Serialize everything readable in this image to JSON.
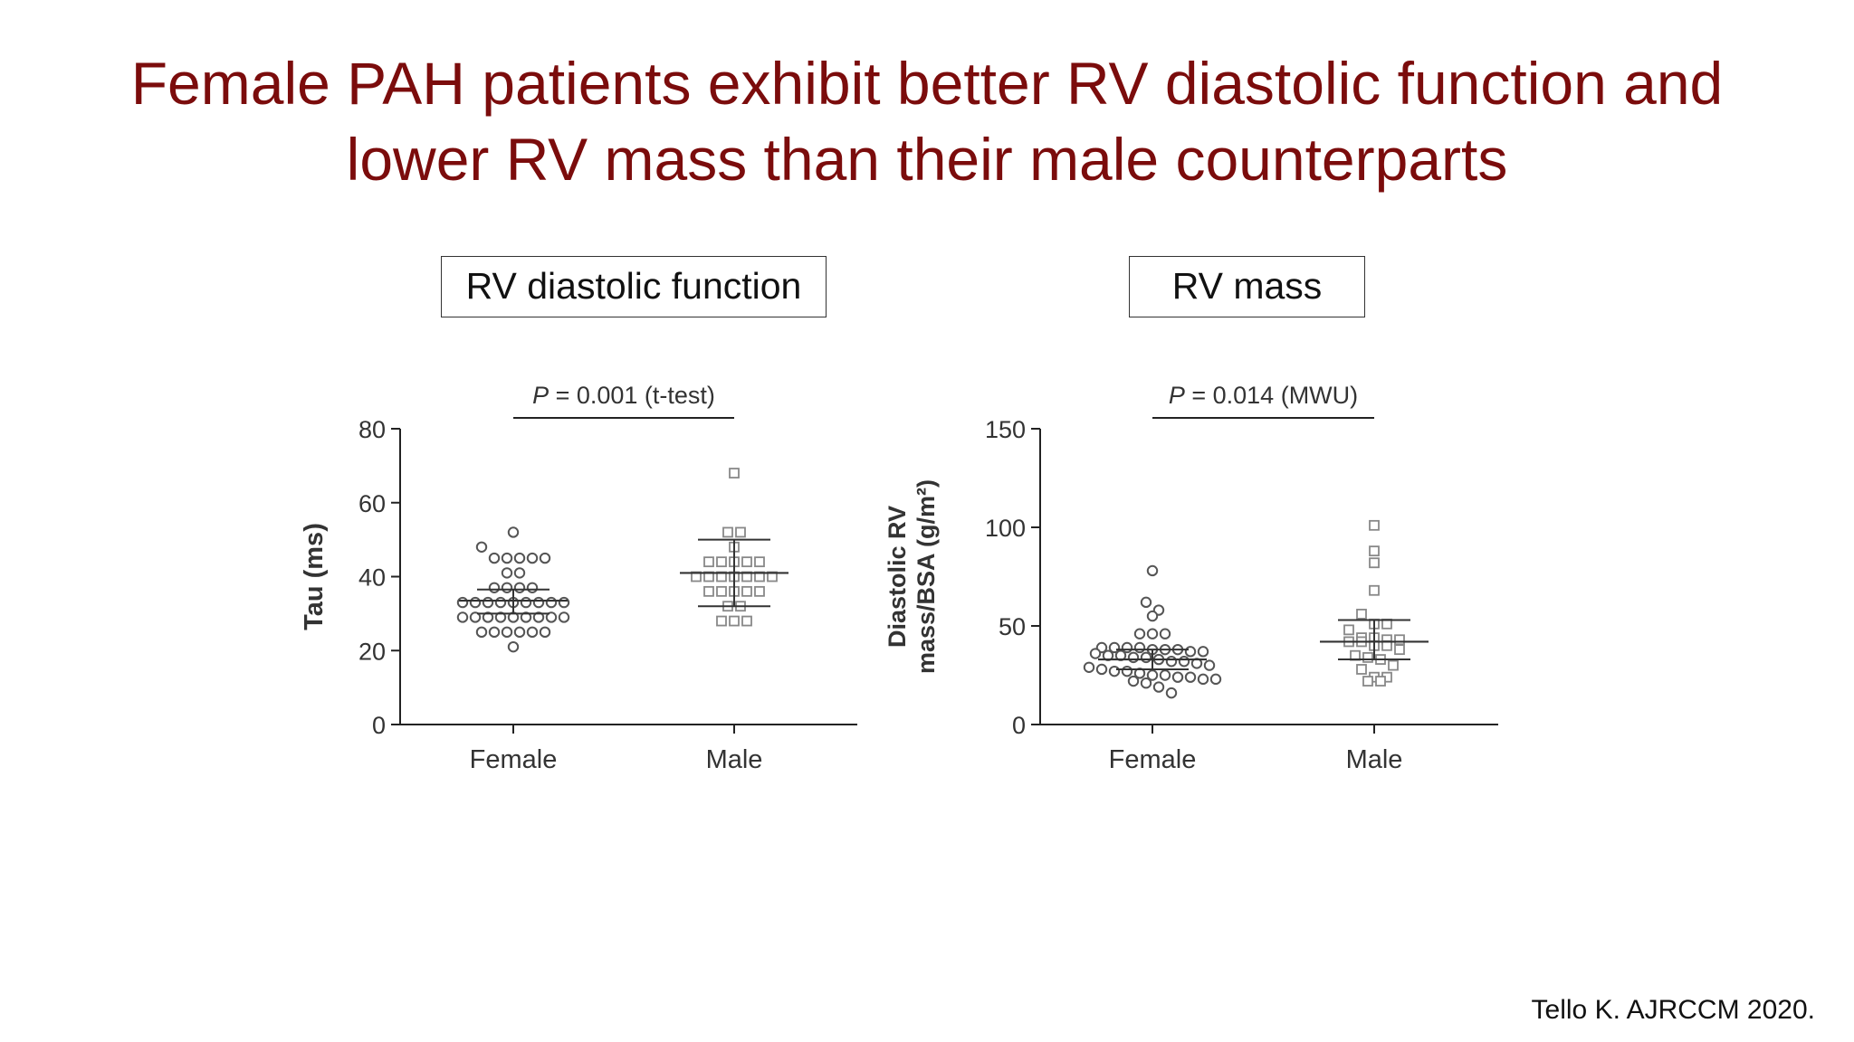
{
  "title": {
    "line1": "Female PAH patients exhibit better RV diastolic function and",
    "line2": "lower RV mass than their male counterparts"
  },
  "panels": {
    "left_label": "RV diastolic function",
    "right_label": "RV mass"
  },
  "citation": "Tello K. AJRCCM 2020.",
  "colors": {
    "title": "#7b0c0c",
    "axis": "#222222",
    "marker": "#555555",
    "square": "#888888"
  },
  "chart_data": [
    {
      "type": "scatter",
      "title": "RV diastolic function",
      "ylabel": "Tau (ms)",
      "categories": [
        "Female",
        "Male"
      ],
      "ylim": [
        0,
        80
      ],
      "yticks": [
        0,
        20,
        40,
        60,
        80
      ],
      "annotation": {
        "p_label": "P",
        "p_text": " = 0.001 (t-test)"
      },
      "series": [
        {
          "name": "Female",
          "marker": "circle",
          "values": [
            52,
            48,
            45,
            45,
            45,
            45,
            45,
            41,
            41,
            37,
            37,
            37,
            37,
            33,
            33,
            33,
            33,
            33,
            33,
            33,
            33,
            33,
            29,
            29,
            29,
            29,
            29,
            29,
            29,
            29,
            29,
            25,
            25,
            25,
            25,
            25,
            25,
            21
          ],
          "mean": 33.5,
          "sd_low": 30,
          "sd_high": 36.5
        },
        {
          "name": "Male",
          "marker": "square",
          "values": [
            68,
            52,
            52,
            48,
            44,
            44,
            44,
            44,
            44,
            40,
            40,
            40,
            40,
            40,
            40,
            40,
            36,
            36,
            36,
            36,
            36,
            32,
            32,
            28,
            28,
            28
          ],
          "mean": 41,
          "sd_low": 32,
          "sd_high": 50
        }
      ]
    },
    {
      "type": "scatter",
      "title": "RV mass",
      "ylabel_line1": "Diastolic RV",
      "ylabel_line2": "mass/BSA (g/m²)",
      "categories": [
        "Female",
        "Male"
      ],
      "ylim": [
        0,
        150
      ],
      "yticks": [
        0,
        50,
        100,
        150
      ],
      "annotation": {
        "p_label": "P",
        "p_text": " = 0.014 (MWU)"
      },
      "series": [
        {
          "name": "Female",
          "marker": "circle",
          "values": [
            78,
            62,
            58,
            55,
            46,
            46,
            46,
            39,
            39,
            39,
            39,
            38,
            38,
            38,
            37,
            37,
            36,
            35,
            35,
            34,
            34,
            33,
            32,
            32,
            31,
            30,
            29,
            28,
            27,
            27,
            26,
            25,
            25,
            24,
            24,
            23,
            23,
            22,
            21,
            19,
            16
          ],
          "mean": 33,
          "sd_low": 28,
          "sd_high": 38
        },
        {
          "name": "Male",
          "marker": "square",
          "values": [
            101,
            88,
            82,
            68,
            56,
            51,
            51,
            48,
            44,
            44,
            43,
            43,
            42,
            42,
            40,
            40,
            38,
            35,
            34,
            33,
            30,
            28,
            24,
            24,
            22,
            22
          ],
          "mean": 42,
          "sd_low": 33,
          "sd_high": 53
        }
      ]
    }
  ]
}
